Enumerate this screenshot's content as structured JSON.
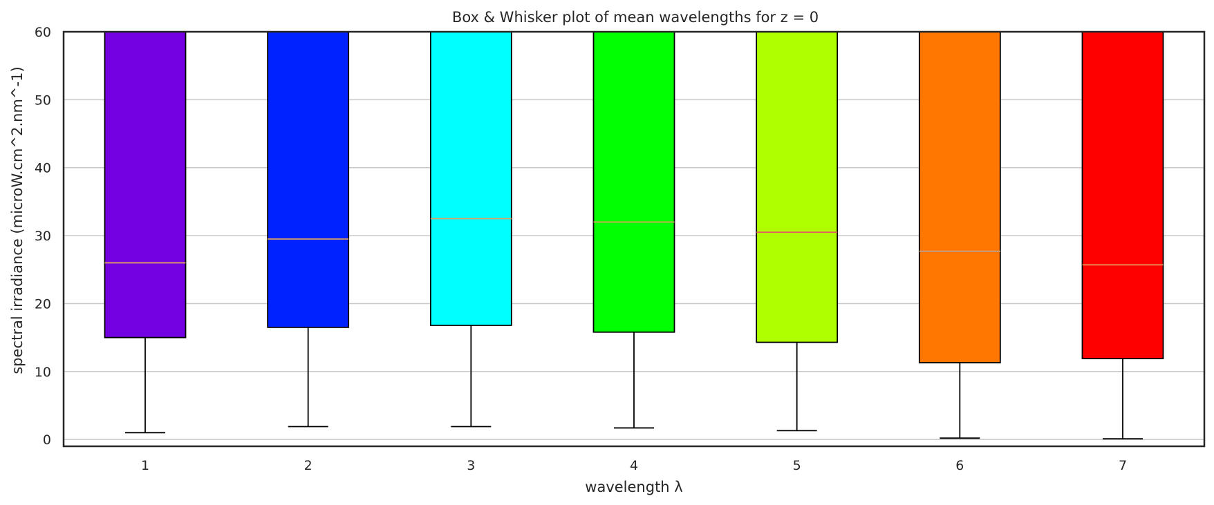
{
  "chart_data": {
    "type": "box",
    "title": "Box & Whisker plot of mean wavelengths for z = 0",
    "xlabel": "wavelength λ",
    "ylabel": "spectral irradiance (microW.cm^2.nm^-1)",
    "ylim": [
      -1,
      60
    ],
    "yticks": [
      0,
      10,
      20,
      30,
      40,
      50,
      60
    ],
    "grid": "horizontal",
    "categories": [
      "1",
      "2",
      "3",
      "4",
      "5",
      "6",
      "7"
    ],
    "series": [
      {
        "whisker_low": 1.0,
        "q1": 15.0,
        "median": 26.0,
        "q3": 60,
        "color": "#7300e0",
        "median_color": "#e0a060"
      },
      {
        "whisker_low": 1.9,
        "q1": 16.5,
        "median": 29.5,
        "q3": 60,
        "color": "#0022ff",
        "median_color": "#e0a060"
      },
      {
        "whisker_low": 1.9,
        "q1": 16.8,
        "median": 32.5,
        "q3": 60,
        "color": "#00ffff",
        "median_color": "#e0a060"
      },
      {
        "whisker_low": 1.7,
        "q1": 15.8,
        "median": 32.0,
        "q3": 60,
        "color": "#00ff00",
        "median_color": "#e0a060"
      },
      {
        "whisker_low": 1.3,
        "q1": 14.3,
        "median": 30.5,
        "q3": 60,
        "color": "#b0ff00",
        "median_color": "#e06060"
      },
      {
        "whisker_low": 0.2,
        "q1": 11.3,
        "median": 27.7,
        "q3": 60,
        "color": "#ff7700",
        "median_color": "#c0a090"
      },
      {
        "whisker_low": 0.1,
        "q1": 11.9,
        "median": 25.7,
        "q3": 60,
        "color": "#ff0000",
        "median_color": "#e0a060"
      }
    ]
  }
}
